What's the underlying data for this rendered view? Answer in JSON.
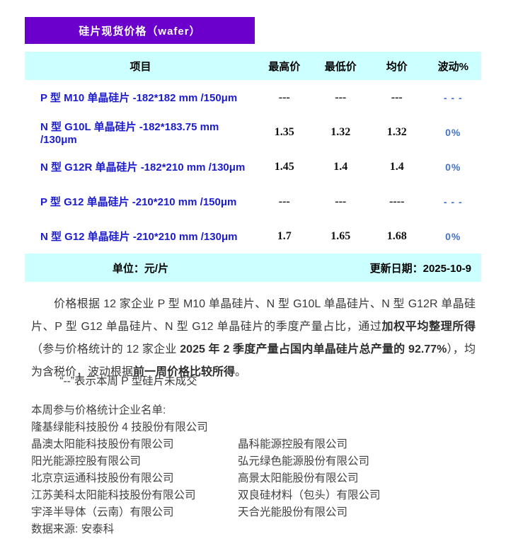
{
  "title_bar": {
    "label": "硅片现货价格（wafer）",
    "bg": "#6b00cc"
  },
  "colors": {
    "header_bg": "#ccffff",
    "title_bg": "#6b00cc",
    "product_blue": "#1c1ccd",
    "change_blue": "#4472c4"
  },
  "table": {
    "header": {
      "item": "项目",
      "high": "最高价",
      "low": "最低价",
      "avg": "均价",
      "change": "波动%"
    },
    "rows": [
      {
        "name": "P 型 M10 单晶硅片 -182*182 mm /150μm",
        "high": "---",
        "low": "---",
        "avg": "---",
        "change": "- - -"
      },
      {
        "name": "N 型 G10L 单晶硅片 -182*183.75 mm /130μm",
        "high": "1.35",
        "low": "1.32",
        "avg": "1.32",
        "change": "0%"
      },
      {
        "name": "N 型 G12R 单晶硅片 -182*210 mm /130μm",
        "high": "1.45",
        "low": "1.4",
        "avg": "1.4",
        "change": "0%"
      },
      {
        "name": "P 型 G12 单晶硅片 -210*210 mm /150μm",
        "high": "---",
        "low": "---",
        "avg": "----",
        "change": "- - -"
      },
      {
        "name": "N 型 G12 单晶硅片 -210*210 mm /130μm",
        "high": "1.7",
        "low": "1.65",
        "avg": "1.68",
        "change": "0%"
      }
    ],
    "footer": {
      "unit": "单位：元/片",
      "update": "更新日期：2025-10-9"
    }
  },
  "notes": {
    "paragraph_runs": [
      {
        "text": "价格根据 12 家企业 P 型 M10 单晶硅片、N 型 G10L 单晶硅片、N 型 G12R 单晶硅片、P 型 G12 单晶硅片、N 型 G12 单晶硅片的季度产量占比，通过"
      },
      {
        "text": "加权平均整理所得"
      },
      {
        "text": "（参与价格统计的 12 家企业 "
      },
      {
        "text": "2025 年 2 季度产量占国内单晶硅片总产量的 92.77%"
      },
      {
        "text": "），均为含税价，波动根据"
      },
      {
        "text": "前一周价格比较所得"
      },
      {
        "text": "。"
      }
    ],
    "dash_note": "“--”表示本周 P 型硅片未成交"
  },
  "companies": {
    "heading": "本周参与价格统计企业名单:",
    "full_width": "隆基绿能科技股份 4 技股份有限公司",
    "rows": [
      {
        "left": "晶澳太阳能科技股份有限公司",
        "right": "晶科能源控股有限公司"
      },
      {
        "left": "阳光能源控股有限公司",
        "right": "弘元绿色能源股份有限公司"
      },
      {
        "left": "北京京运通科技股份有限公司",
        "right": "高景太阳能股份有限公司"
      },
      {
        "left": "江苏美科太阳能科技股份有限公司",
        "right": "双良硅材料（包头）有限公司"
      },
      {
        "left": "宇泽半导体（云南）有限公司",
        "right": "天合光能股份有限公司"
      }
    ],
    "source": "数据来源: 安泰科"
  }
}
